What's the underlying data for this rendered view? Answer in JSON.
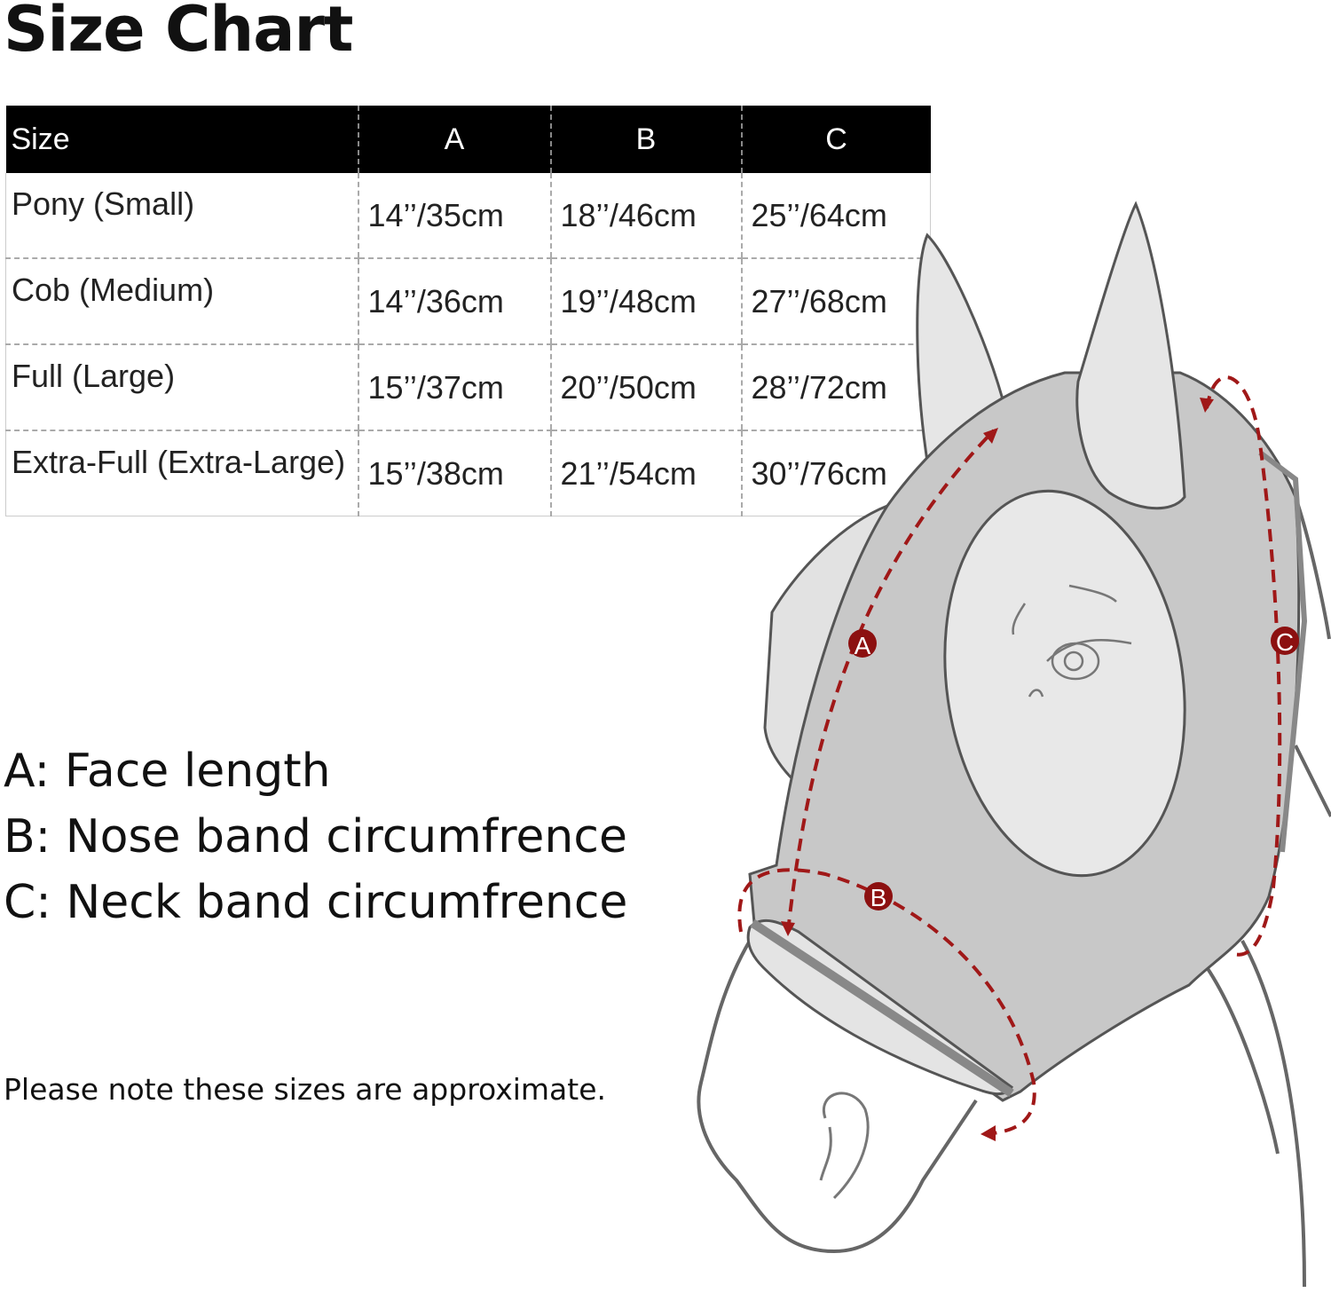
{
  "title": "Size Chart",
  "table": {
    "headers": [
      "Size",
      "A",
      "B",
      "C"
    ],
    "rows": [
      [
        "Pony (Small)",
        "14’’/35cm",
        "18’’/46cm",
        "25’’/64cm"
      ],
      [
        "Cob (Medium)",
        "14’’/36cm",
        "19’’/48cm",
        "27’’/68cm"
      ],
      [
        "Full (Large)",
        "15’’/37cm",
        "20’’/50cm",
        "28’’/72cm"
      ],
      [
        "Extra-Full (Extra-Large)",
        "15’’/38cm",
        "21’’/54cm",
        "30’’/76cm"
      ]
    ]
  },
  "legend": [
    "A: Face length",
    "B: Nose band circumfrence",
    "C: Neck band circumfrence"
  ],
  "note": "Please note these sizes are approximate.",
  "diagram": {
    "markers": [
      "A",
      "B",
      "C"
    ],
    "colors": {
      "measure": "#a01818",
      "mask": "#c8c8c8",
      "outline": "#555555"
    }
  }
}
